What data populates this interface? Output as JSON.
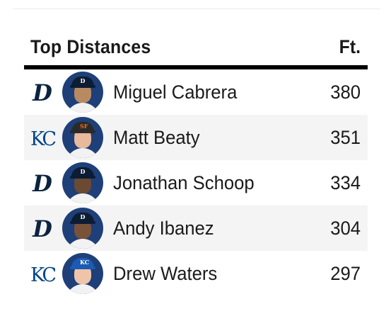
{
  "header": {
    "title": "Top Distances",
    "unit": "Ft."
  },
  "colors": {
    "tigers_navy": "#0c2340",
    "royals_blue": "#004687",
    "alt_row": "#f4f4f4"
  },
  "rows": [
    {
      "team": "DET",
      "logo_icon": "tigers-d-logo-icon",
      "player": "Miguel Cabrera",
      "distance": "380"
    },
    {
      "team": "KC",
      "logo_icon": "royals-kc-logo-icon",
      "player": "Matt Beaty",
      "distance": "351"
    },
    {
      "team": "DET",
      "logo_icon": "tigers-d-logo-icon",
      "player": "Jonathan Schoop",
      "distance": "334"
    },
    {
      "team": "DET",
      "logo_icon": "tigers-d-logo-icon",
      "player": "Andy Ibanez",
      "distance": "304"
    },
    {
      "team": "KC",
      "logo_icon": "royals-kc-logo-icon",
      "player": "Drew Waters",
      "distance": "297"
    }
  ]
}
